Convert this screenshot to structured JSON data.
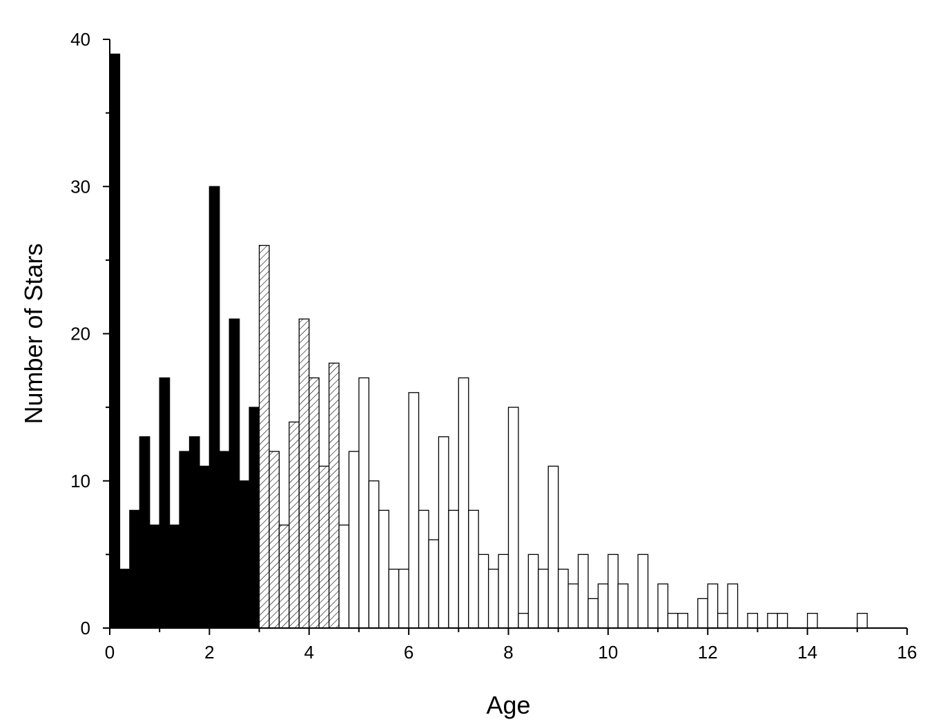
{
  "chart_data": {
    "type": "bar",
    "title": "",
    "xlabel": "Age",
    "ylabel": "Number of Stars",
    "xlim": [
      0,
      16
    ],
    "ylim": [
      0,
      40
    ],
    "bin_width": 0.2,
    "x_ticks": [
      0,
      2,
      4,
      6,
      8,
      10,
      12,
      14,
      16
    ],
    "y_ticks": [
      0,
      10,
      20,
      30,
      40
    ],
    "grid": false,
    "legend": "none",
    "colors": {
      "solid": "#000000",
      "outline": "#000000",
      "background": "#ffffff"
    },
    "series": [
      {
        "style": "solid",
        "x": [
          0.1,
          0.3,
          0.5,
          0.7,
          0.9,
          1.1,
          1.3,
          1.5,
          1.7,
          1.9,
          2.1,
          2.3,
          2.5,
          2.7,
          2.9
        ],
        "values": [
          39,
          4,
          8,
          13,
          7,
          17,
          7,
          12,
          13,
          11,
          30,
          12,
          21,
          10,
          15
        ]
      },
      {
        "style": "hatched",
        "x": [
          3.1,
          3.3,
          3.5,
          3.7,
          3.9,
          4.1,
          4.3,
          4.5
        ],
        "values": [
          26,
          12,
          7,
          14,
          21,
          17,
          11,
          18
        ]
      },
      {
        "style": "open",
        "x": [
          4.7,
          4.9,
          5.1,
          5.3,
          5.5,
          5.7,
          5.9,
          6.1,
          6.3,
          6.5,
          6.7,
          6.9,
          7.1,
          7.3,
          7.5,
          7.7,
          7.9,
          8.1,
          8.3,
          8.5,
          8.7,
          8.9,
          9.1,
          9.3,
          9.5,
          9.7,
          9.9,
          10.1,
          10.3,
          10.5,
          10.7,
          10.9,
          11.1,
          11.3,
          11.5,
          11.7,
          11.9,
          12.1,
          12.3,
          12.5,
          12.7,
          12.9,
          13.1,
          13.3,
          13.5,
          13.7,
          13.9,
          14.1,
          14.3,
          14.5,
          14.7,
          14.9,
          15.1
        ],
        "values": [
          7,
          12,
          17,
          10,
          8,
          4,
          4,
          16,
          8,
          6,
          13,
          8,
          17,
          8,
          5,
          4,
          5,
          15,
          1,
          5,
          4,
          11,
          4,
          3,
          5,
          2,
          3,
          5,
          3,
          0,
          5,
          0,
          3,
          1,
          1,
          0,
          2,
          3,
          1,
          3,
          0,
          1,
          0,
          1,
          1,
          0,
          0,
          1,
          0,
          0,
          0,
          0,
          1
        ]
      }
    ]
  }
}
